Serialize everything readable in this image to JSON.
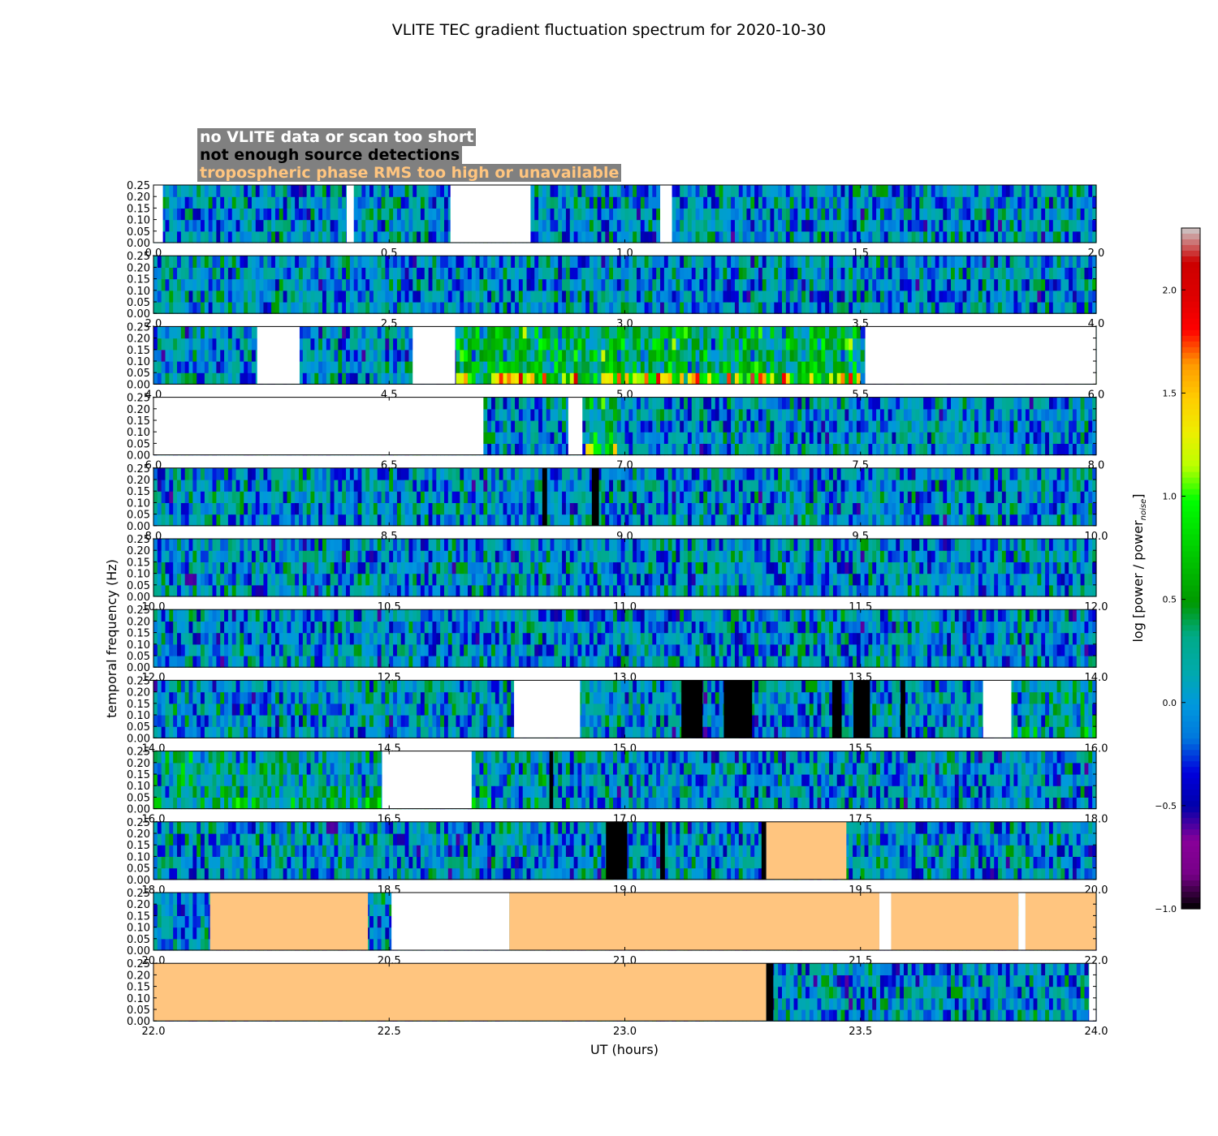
{
  "chart_data": {
    "type": "heatmap",
    "title": "VLITE TEC gradient fluctuation spectrum for 2020-10-30",
    "xlabel": "UT (hours)",
    "ylabel": "temporal frequency (Hz)",
    "colorbar_label": "log [power / power",
    "colorbar_label_sub": "noise",
    "colorbar_label_end": "]",
    "colormap": "nipy_spectral",
    "color_range": [
      -1.0,
      2.3
    ],
    "colorbar_ticks": [
      -1.0,
      -0.5,
      0.0,
      0.5,
      1.0,
      1.5,
      2.0
    ],
    "colorbar_tick_labels": [
      "−1.0",
      "−0.5",
      "0.0",
      "0.5",
      "1.0",
      "1.5",
      "2.0"
    ],
    "ylim": [
      0,
      0.25
    ],
    "y_ticks": [
      "0.00",
      "0.05",
      "0.10",
      "0.15",
      "0.20",
      "0.25"
    ],
    "flag_legend": [
      {
        "label": "no VLITE data or scan too short",
        "color": "#ffffff"
      },
      {
        "label": "not enough source detections",
        "color": "#000000"
      },
      {
        "label": "tropospheric phase RMS too high or unavailable",
        "color": "#ffc57f"
      }
    ],
    "flag_colors": {
      "nodata": "#ffffff",
      "nodet": "#000000",
      "tropo": "#ffc57f"
    },
    "panels": [
      {
        "xlim": [
          0,
          2
        ],
        "x_ticks": [
          "0.0",
          "0.5",
          "1.0",
          "1.5",
          "2.0"
        ],
        "flags": [
          {
            "type": "nodata",
            "start": 0.0,
            "end": 0.02
          },
          {
            "type": "nodata",
            "start": 0.41,
            "end": 0.425
          },
          {
            "type": "nodata",
            "start": 0.63,
            "end": 0.8
          },
          {
            "type": "nodata",
            "start": 1.075,
            "end": 1.1
          }
        ],
        "activity": []
      },
      {
        "xlim": [
          2,
          4
        ],
        "x_ticks": [
          "2.0",
          "2.5",
          "3.0",
          "3.5",
          "4.0"
        ],
        "flags": [],
        "activity": []
      },
      {
        "xlim": [
          4,
          6
        ],
        "x_ticks": [
          "4.0",
          "4.5",
          "5.0",
          "5.5",
          "6.0"
        ],
        "flags": [
          {
            "type": "nodata",
            "start": 4.22,
            "end": 4.31
          },
          {
            "type": "nodata",
            "start": 4.55,
            "end": 4.64
          },
          {
            "type": "nodata",
            "start": 5.51,
            "end": 6.0
          }
        ],
        "activity": [
          {
            "start": 4.64,
            "end": 5.5,
            "level": 1.2
          }
        ]
      },
      {
        "xlim": [
          6,
          8
        ],
        "x_ticks": [
          "6.0",
          "6.5",
          "7.0",
          "7.5",
          "8.0"
        ],
        "flags": [
          {
            "type": "nodata",
            "start": 6.0,
            "end": 6.7
          },
          {
            "type": "nodata",
            "start": 6.88,
            "end": 6.91
          }
        ],
        "activity": [
          {
            "start": 6.92,
            "end": 6.98,
            "level": 1.0
          }
        ]
      },
      {
        "xlim": [
          8,
          10
        ],
        "x_ticks": [
          "8.0",
          "8.5",
          "9.0",
          "9.5",
          "10.0"
        ],
        "flags": [
          {
            "type": "nodet",
            "start": 8.825,
            "end": 8.835
          },
          {
            "type": "nodet",
            "start": 8.93,
            "end": 8.945
          }
        ],
        "activity": []
      },
      {
        "xlim": [
          10,
          12
        ],
        "x_ticks": [
          "10.0",
          "10.5",
          "11.0",
          "11.5",
          "12.0"
        ],
        "flags": [],
        "activity": []
      },
      {
        "xlim": [
          12,
          14
        ],
        "x_ticks": [
          "12.0",
          "12.5",
          "13.0",
          "13.5",
          "14.0"
        ],
        "flags": [],
        "activity": []
      },
      {
        "xlim": [
          14,
          16
        ],
        "x_ticks": [
          "14.0",
          "14.5",
          "15.0",
          "15.5",
          "16.0"
        ],
        "flags": [
          {
            "type": "nodata",
            "start": 14.765,
            "end": 14.905
          },
          {
            "type": "nodet",
            "start": 15.12,
            "end": 15.165
          },
          {
            "type": "nodet",
            "start": 15.21,
            "end": 15.27
          },
          {
            "type": "nodet",
            "start": 15.44,
            "end": 15.46
          },
          {
            "type": "nodet",
            "start": 15.485,
            "end": 15.52
          },
          {
            "type": "nodet",
            "start": 15.585,
            "end": 15.595
          },
          {
            "type": "nodata",
            "start": 15.76,
            "end": 15.82
          }
        ],
        "activity": [
          {
            "start": 15.82,
            "end": 16.0,
            "level": 0.4
          }
        ]
      },
      {
        "xlim": [
          16,
          18
        ],
        "x_ticks": [
          "16.0",
          "16.5",
          "17.0",
          "17.5",
          "18.0"
        ],
        "flags": [
          {
            "type": "nodata",
            "start": 16.485,
            "end": 16.675
          },
          {
            "type": "nodet",
            "start": 16.84,
            "end": 16.848
          }
        ],
        "activity": [
          {
            "start": 16.0,
            "end": 16.48,
            "level": 0.6
          },
          {
            "start": 16.675,
            "end": 16.84,
            "level": 0.3
          }
        ]
      },
      {
        "xlim": [
          18,
          20
        ],
        "x_ticks": [
          "18.0",
          "18.5",
          "19.0",
          "19.5",
          "20.0"
        ],
        "flags": [
          {
            "type": "nodet",
            "start": 18.96,
            "end": 19.005
          },
          {
            "type": "nodet",
            "start": 19.075,
            "end": 19.085
          },
          {
            "type": "nodet",
            "start": 19.29,
            "end": 19.3
          },
          {
            "type": "tropo",
            "start": 19.3,
            "end": 19.47
          }
        ],
        "activity": []
      },
      {
        "xlim": [
          20,
          22
        ],
        "x_ticks": [
          "20.0",
          "20.5",
          "21.0",
          "21.5",
          "22.0"
        ],
        "flags": [
          {
            "type": "tropo",
            "start": 20.12,
            "end": 20.455
          },
          {
            "type": "nodata",
            "start": 20.505,
            "end": 20.755
          },
          {
            "type": "tropo",
            "start": 20.755,
            "end": 21.54
          },
          {
            "type": "nodata",
            "start": 21.54,
            "end": 21.565
          },
          {
            "type": "tropo",
            "start": 21.565,
            "end": 21.835
          },
          {
            "type": "nodata",
            "start": 21.835,
            "end": 21.85
          },
          {
            "type": "tropo",
            "start": 21.85,
            "end": 22.0
          }
        ],
        "activity": []
      },
      {
        "xlim": [
          22,
          24
        ],
        "x_ticks": [
          "22.0",
          "22.5",
          "23.0",
          "23.5",
          "24.0"
        ],
        "flags": [
          {
            "type": "tropo",
            "start": 22.0,
            "end": 23.3
          },
          {
            "type": "nodet",
            "start": 23.3,
            "end": 23.315
          },
          {
            "type": "nodata",
            "start": 23.985,
            "end": 24.0
          }
        ],
        "activity": []
      }
    ]
  }
}
